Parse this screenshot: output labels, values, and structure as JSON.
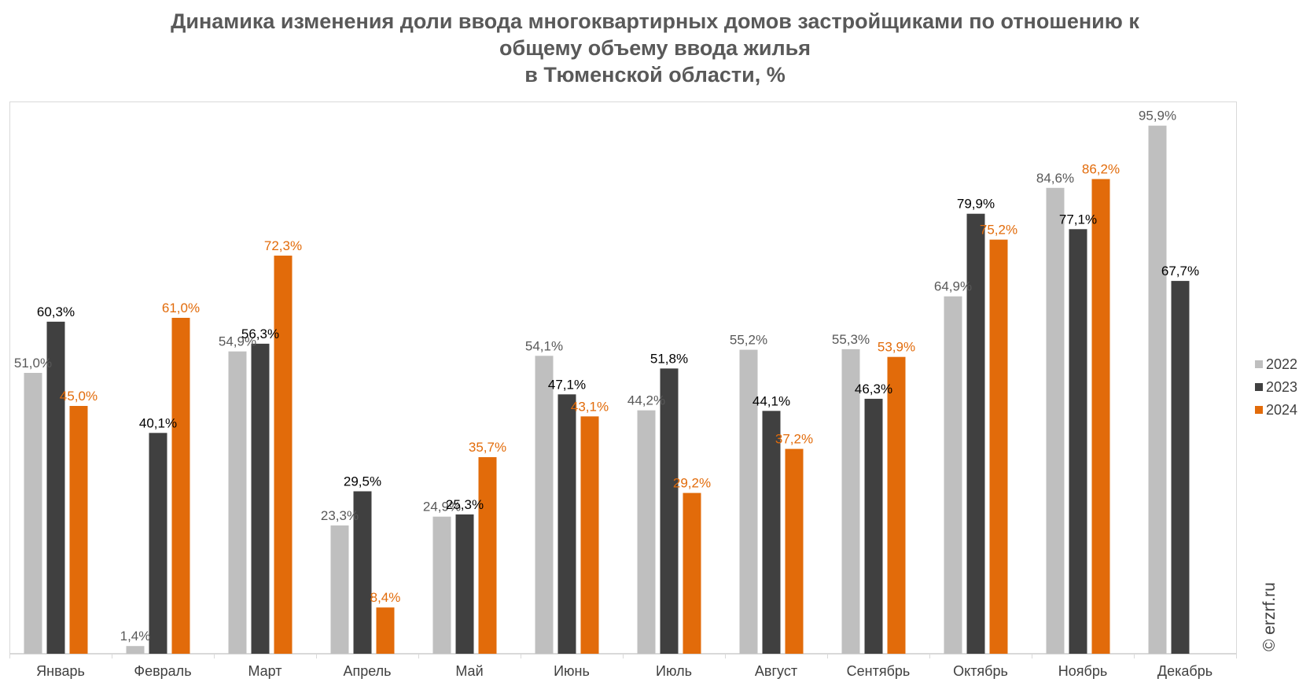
{
  "title_lines": [
    "Динамика изменения доли ввода многоквартирных домов застройщиками по отношению к",
    "общему объему ввода жилья",
    "в Тюменской области, %"
  ],
  "watermark": "© erzrf.ru",
  "colors": {
    "2022": "#bfbfbf",
    "2023": "#404040",
    "2024": "#e26b0a"
  },
  "chart_data": {
    "type": "bar",
    "title": "Динамика изменения доли ввода многоквартирных домов застройщиками по отношению к общему объему ввода жилья в Тюменской области, %",
    "categories": [
      "Январь",
      "Февраль",
      "Март",
      "Апрель",
      "Май",
      "Июнь",
      "Июль",
      "Август",
      "Сентябрь",
      "Октябрь",
      "Ноябрь",
      "Декабрь"
    ],
    "series": [
      {
        "name": "2022",
        "values": [
          51.0,
          1.4,
          54.9,
          23.3,
          24.9,
          54.1,
          44.2,
          55.2,
          55.3,
          64.9,
          84.6,
          95.9
        ],
        "labels": [
          "51,0%",
          "1,4%",
          "54,9%",
          "23,3%",
          "24,9%",
          "54,1%",
          "44,2%",
          "55,2%",
          "55,3%",
          "64,9%",
          "84,6%",
          "95,9%"
        ]
      },
      {
        "name": "2023",
        "values": [
          60.3,
          40.1,
          56.3,
          29.5,
          25.3,
          47.1,
          51.8,
          44.1,
          46.3,
          79.9,
          77.1,
          67.7
        ],
        "labels": [
          "60,3%",
          "40,1%",
          "56,3%",
          "29,5%",
          "25,3%",
          "47,1%",
          "51,8%",
          "44,1%",
          "46,3%",
          "79,9%",
          "77,1%",
          "67,7%"
        ]
      },
      {
        "name": "2024",
        "values": [
          45.0,
          61.0,
          72.3,
          8.4,
          35.7,
          43.1,
          29.2,
          37.2,
          53.9,
          75.2,
          86.2,
          null
        ],
        "labels": [
          "45,0%",
          "61,0%",
          "72,3%",
          "8,4%",
          "35,7%",
          "43,1%",
          "29,2%",
          "37,2%",
          "53,9%",
          "75,2%",
          "86,2%",
          null
        ]
      }
    ],
    "ylim": [
      0,
      100
    ],
    "grid": false,
    "legend": "right"
  }
}
